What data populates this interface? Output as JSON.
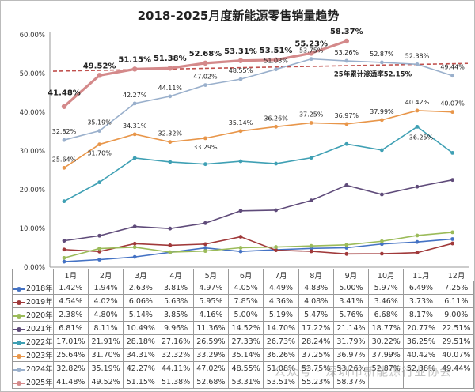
{
  "chart_data": {
    "type": "line",
    "title": "2018-2025月度新能源零售销量趋势",
    "categories": [
      "1月",
      "2月",
      "3月",
      "4月",
      "5月",
      "6月",
      "7月",
      "8月",
      "9月",
      "10月",
      "11月",
      "12月"
    ],
    "yticks": [
      "0.00%",
      "10.00%",
      "20.00%",
      "30.00%",
      "40.00%",
      "50.00%",
      "60.00%"
    ],
    "ylim": [
      0,
      60
    ],
    "grid": false,
    "legend": "table-below",
    "series": [
      {
        "name": "2018年",
        "color": "#4472c4",
        "values": [
          1.42,
          1.94,
          2.63,
          3.81,
          4.97,
          4.05,
          4.49,
          4.83,
          5.0,
          5.97,
          6.49,
          7.25
        ]
      },
      {
        "name": "2019年",
        "color": "#a0393a",
        "values": [
          4.54,
          4.02,
          6.06,
          5.63,
          5.95,
          7.85,
          4.36,
          4.08,
          3.41,
          3.46,
          3.73,
          6.11
        ]
      },
      {
        "name": "2020年",
        "color": "#9bbb59",
        "values": [
          2.38,
          4.8,
          5.14,
          3.85,
          4.16,
          5.0,
          5.19,
          5.47,
          5.76,
          6.68,
          8.17,
          9.0
        ]
      },
      {
        "name": "2021年",
        "color": "#5f4b7a",
        "values": [
          6.81,
          8.11,
          10.49,
          9.96,
          11.36,
          14.52,
          14.7,
          17.22,
          21.14,
          18.77,
          20.77,
          22.51
        ]
      },
      {
        "name": "2022年",
        "color": "#3fa0b4",
        "values": [
          17.01,
          21.91,
          28.18,
          27.16,
          26.59,
          27.33,
          26.73,
          28.24,
          31.79,
          30.22,
          36.25,
          29.51
        ]
      },
      {
        "name": "2023年",
        "color": "#e8964a",
        "values": [
          25.64,
          31.7,
          34.31,
          32.32,
          33.29,
          35.14,
          36.26,
          37.25,
          36.97,
          37.99,
          40.42,
          40.07
        ]
      },
      {
        "name": "2024年",
        "color": "#9ab0cc",
        "values": [
          32.82,
          35.19,
          42.27,
          44.11,
          47.02,
          48.55,
          51.08,
          53.75,
          53.26,
          52.87,
          52.38,
          49.44
        ]
      },
      {
        "name": "2025年",
        "color": "#d4898a",
        "values": [
          41.48,
          49.52,
          51.15,
          51.38,
          52.68,
          53.31,
          53.51,
          55.23,
          58.37,
          null,
          null,
          null
        ]
      }
    ],
    "table_values": [
      [
        "1.42%",
        "1.94%",
        "2.63%",
        "3.81%",
        "4.97%",
        "4.05%",
        "4.49%",
        "4.83%",
        "5.00%",
        "5.97%",
        "6.49%",
        "7.25%"
      ],
      [
        "4.54%",
        "4.02%",
        "6.06%",
        "5.63%",
        "5.95%",
        "7.85%",
        "4.36%",
        "4.08%",
        "3.41%",
        "3.46%",
        "3.73%",
        "6.11%"
      ],
      [
        "2.38%",
        "4.80%",
        "5.14%",
        "3.85%",
        "4.16%",
        "5.00%",
        "5.19%",
        "5.47%",
        "5.76%",
        "6.68%",
        "8.17%",
        "9.00%"
      ],
      [
        "6.81%",
        "8.11%",
        "10.49%",
        "9.96%",
        "11.36%",
        "14.52%",
        "14.70%",
        "17.22%",
        "21.14%",
        "18.77%",
        "20.77%",
        "22.51%"
      ],
      [
        "17.01%",
        "21.91%",
        "28.18%",
        "27.16%",
        "26.59%",
        "27.33%",
        "26.73%",
        "28.24%",
        "31.79%",
        "30.22%",
        "36.25%",
        "29.51%"
      ],
      [
        "25.64%",
        "31.70%",
        "34.31%",
        "32.32%",
        "33.29%",
        "35.14%",
        "36.26%",
        "37.25%",
        "36.97%",
        "37.99%",
        "40.42%",
        "40.07%"
      ],
      [
        "32.82%",
        "35.19%",
        "42.27%",
        "44.11%",
        "47.02%",
        "48.55%",
        "51.08%",
        "53.75%",
        "53.26%",
        "52.87%",
        "52.38%",
        "49.44%"
      ],
      [
        "41.48%",
        "49.52%",
        "51.15%",
        "51.38%",
        "52.68%",
        "53.31%",
        "53.51%",
        "55.23%",
        "58.37%",
        "",
        "",
        ""
      ]
    ],
    "reference_line": {
      "value": 52.15,
      "label": "25年累计渗透率52.15%",
      "color": "#c0504d"
    },
    "annotation_2022": "36.25%"
  },
  "watermark": "公众号 · 深圳市新能源行业协会"
}
